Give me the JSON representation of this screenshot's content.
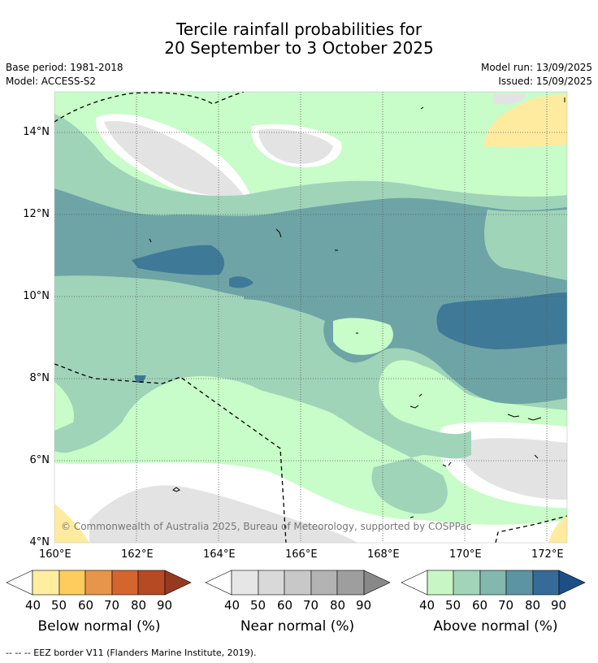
{
  "title": {
    "line1": "Tercile rainfall probabilities for",
    "line2": "20 September to 3 October 2025"
  },
  "meta": {
    "base_period": "Base period: 1981-2018",
    "model": "Model: ACCESS-S2",
    "model_run": "Model run: 13/09/2025",
    "issued": "Issued: 15/09/2025"
  },
  "axes": {
    "lat_ticks": [
      "14°N",
      "12°N",
      "10°N",
      "8°N",
      "6°N",
      "4°N"
    ],
    "lon_ticks": [
      "160°E",
      "162°E",
      "164°E",
      "166°E",
      "168°E",
      "170°E",
      "172°E"
    ]
  },
  "copyright": "© Commonwealth of Australia 2025, Bureau of Meteorology, supported by COSPPac",
  "colorbars": [
    {
      "label": "Below normal (%)",
      "ticks": [
        "40",
        "50",
        "60",
        "70",
        "80",
        "90"
      ],
      "colors": [
        "#ffeda0",
        "#fecc5c",
        "#e6954b",
        "#d5652f",
        "#b54a25",
        "#963a1f"
      ]
    },
    {
      "label": "Near normal (%)",
      "ticks": [
        "40",
        "50",
        "60",
        "70",
        "80",
        "90"
      ],
      "colors": [
        "#e6e6e6",
        "#d9d9d9",
        "#c8c8c8",
        "#b3b3b3",
        "#9e9e9e",
        "#888888"
      ]
    },
    {
      "label": "Above normal (%)",
      "ticks": [
        "40",
        "50",
        "60",
        "70",
        "80",
        "90"
      ],
      "colors": [
        "#c8f7c5",
        "#a2d4b9",
        "#82b8ad",
        "#5c94a3",
        "#356b98",
        "#1c4f86"
      ]
    }
  ],
  "footnote": "-- -- -- EEZ border V11 (Flanders Marine Institute, 2019).",
  "map_colors": {
    "above_40": "#c8fcc8",
    "above_50": "#a0d4b9",
    "above_60": "#6ea4a6",
    "above_70": "#3e7998",
    "near_40": "#e3e3e3",
    "below_40": "#ffeba0"
  }
}
